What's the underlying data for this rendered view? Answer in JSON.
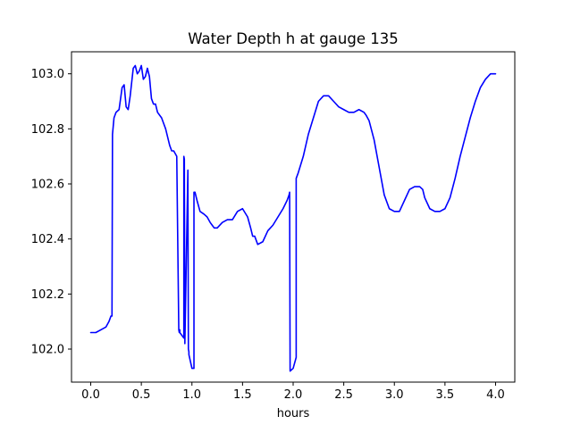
{
  "chart_data": {
    "type": "line",
    "title": "Water Depth h at gauge 135",
    "xlabel": "hours",
    "ylabel": "",
    "xlim": [
      -0.19,
      4.19
    ],
    "ylim": [
      101.88,
      103.08
    ],
    "xticks": [
      0.0,
      0.5,
      1.0,
      1.5,
      2.0,
      2.5,
      3.0,
      3.5,
      4.0
    ],
    "xtick_labels": [
      "0.0",
      "0.5",
      "1.0",
      "1.5",
      "2.0",
      "2.5",
      "3.0",
      "3.5",
      "4.0"
    ],
    "yticks": [
      102.0,
      102.2,
      102.4,
      102.6,
      102.8,
      103.0
    ],
    "ytick_labels": [
      "102.0",
      "102.2",
      "102.4",
      "102.6",
      "102.8",
      "103.0"
    ],
    "grid": false,
    "legend": "none",
    "series": [
      {
        "color": "#0000ff",
        "x": [
          0.0,
          0.05,
          0.1,
          0.15,
          0.18,
          0.2,
          0.21,
          0.215,
          0.23,
          0.25,
          0.28,
          0.31,
          0.33,
          0.35,
          0.37,
          0.39,
          0.42,
          0.44,
          0.46,
          0.48,
          0.5,
          0.52,
          0.54,
          0.56,
          0.58,
          0.6,
          0.62,
          0.64,
          0.66,
          0.7,
          0.74,
          0.78,
          0.8,
          0.82,
          0.85,
          0.87,
          0.875,
          0.88,
          0.88,
          0.9,
          0.92,
          0.92,
          0.925,
          0.93,
          0.93,
          0.96,
          0.96,
          0.965,
          0.97,
          0.97,
          1.0,
          1.02,
          1.02,
          1.03,
          1.05,
          1.08,
          1.12,
          1.15,
          1.18,
          1.2,
          1.22,
          1.25,
          1.3,
          1.35,
          1.4,
          1.45,
          1.5,
          1.55,
          1.58,
          1.6,
          1.62,
          1.65,
          1.7,
          1.75,
          1.8,
          1.85,
          1.9,
          1.94,
          1.96,
          1.965,
          1.97,
          2.0,
          2.03,
          2.03,
          2.05,
          2.1,
          2.15,
          2.2,
          2.25,
          2.3,
          2.35,
          2.4,
          2.45,
          2.5,
          2.55,
          2.6,
          2.65,
          2.7,
          2.72,
          2.75,
          2.8,
          2.85,
          2.9,
          2.95,
          3.0,
          3.05,
          3.1,
          3.15,
          3.2,
          3.25,
          3.28,
          3.3,
          3.35,
          3.4,
          3.45,
          3.5,
          3.55,
          3.6,
          3.65,
          3.7,
          3.75,
          3.8,
          3.85,
          3.9,
          3.95,
          4.0
        ],
        "y": [
          102.06,
          102.06,
          102.07,
          102.08,
          102.1,
          102.12,
          102.12,
          102.78,
          102.84,
          102.86,
          102.87,
          102.95,
          102.96,
          102.88,
          102.87,
          102.92,
          103.02,
          103.03,
          103.0,
          103.01,
          103.03,
          102.98,
          102.99,
          103.02,
          102.99,
          102.91,
          102.89,
          102.89,
          102.86,
          102.84,
          102.8,
          102.74,
          102.72,
          102.72,
          102.7,
          102.07,
          102.06,
          102.07,
          102.06,
          102.05,
          102.04,
          102.7,
          102.69,
          102.04,
          102.02,
          102.65,
          102.64,
          102.0,
          101.99,
          101.98,
          101.93,
          101.93,
          102.57,
          102.57,
          102.54,
          102.5,
          102.49,
          102.48,
          102.46,
          102.45,
          102.44,
          102.44,
          102.46,
          102.47,
          102.47,
          102.5,
          102.51,
          102.48,
          102.44,
          102.41,
          102.41,
          102.38,
          102.39,
          102.43,
          102.45,
          102.48,
          102.51,
          102.54,
          102.56,
          102.57,
          101.92,
          101.93,
          101.97,
          102.62,
          102.64,
          102.7,
          102.78,
          102.84,
          102.9,
          102.92,
          102.92,
          102.9,
          102.88,
          102.87,
          102.86,
          102.86,
          102.87,
          102.86,
          102.85,
          102.83,
          102.76,
          102.66,
          102.56,
          102.51,
          102.5,
          102.5,
          102.54,
          102.58,
          102.59,
          102.59,
          102.58,
          102.55,
          102.51,
          102.5,
          102.5,
          102.51,
          102.55,
          102.62,
          102.7,
          102.77,
          102.84,
          102.9,
          102.95,
          102.98,
          103.0,
          103.0
        ]
      }
    ]
  }
}
